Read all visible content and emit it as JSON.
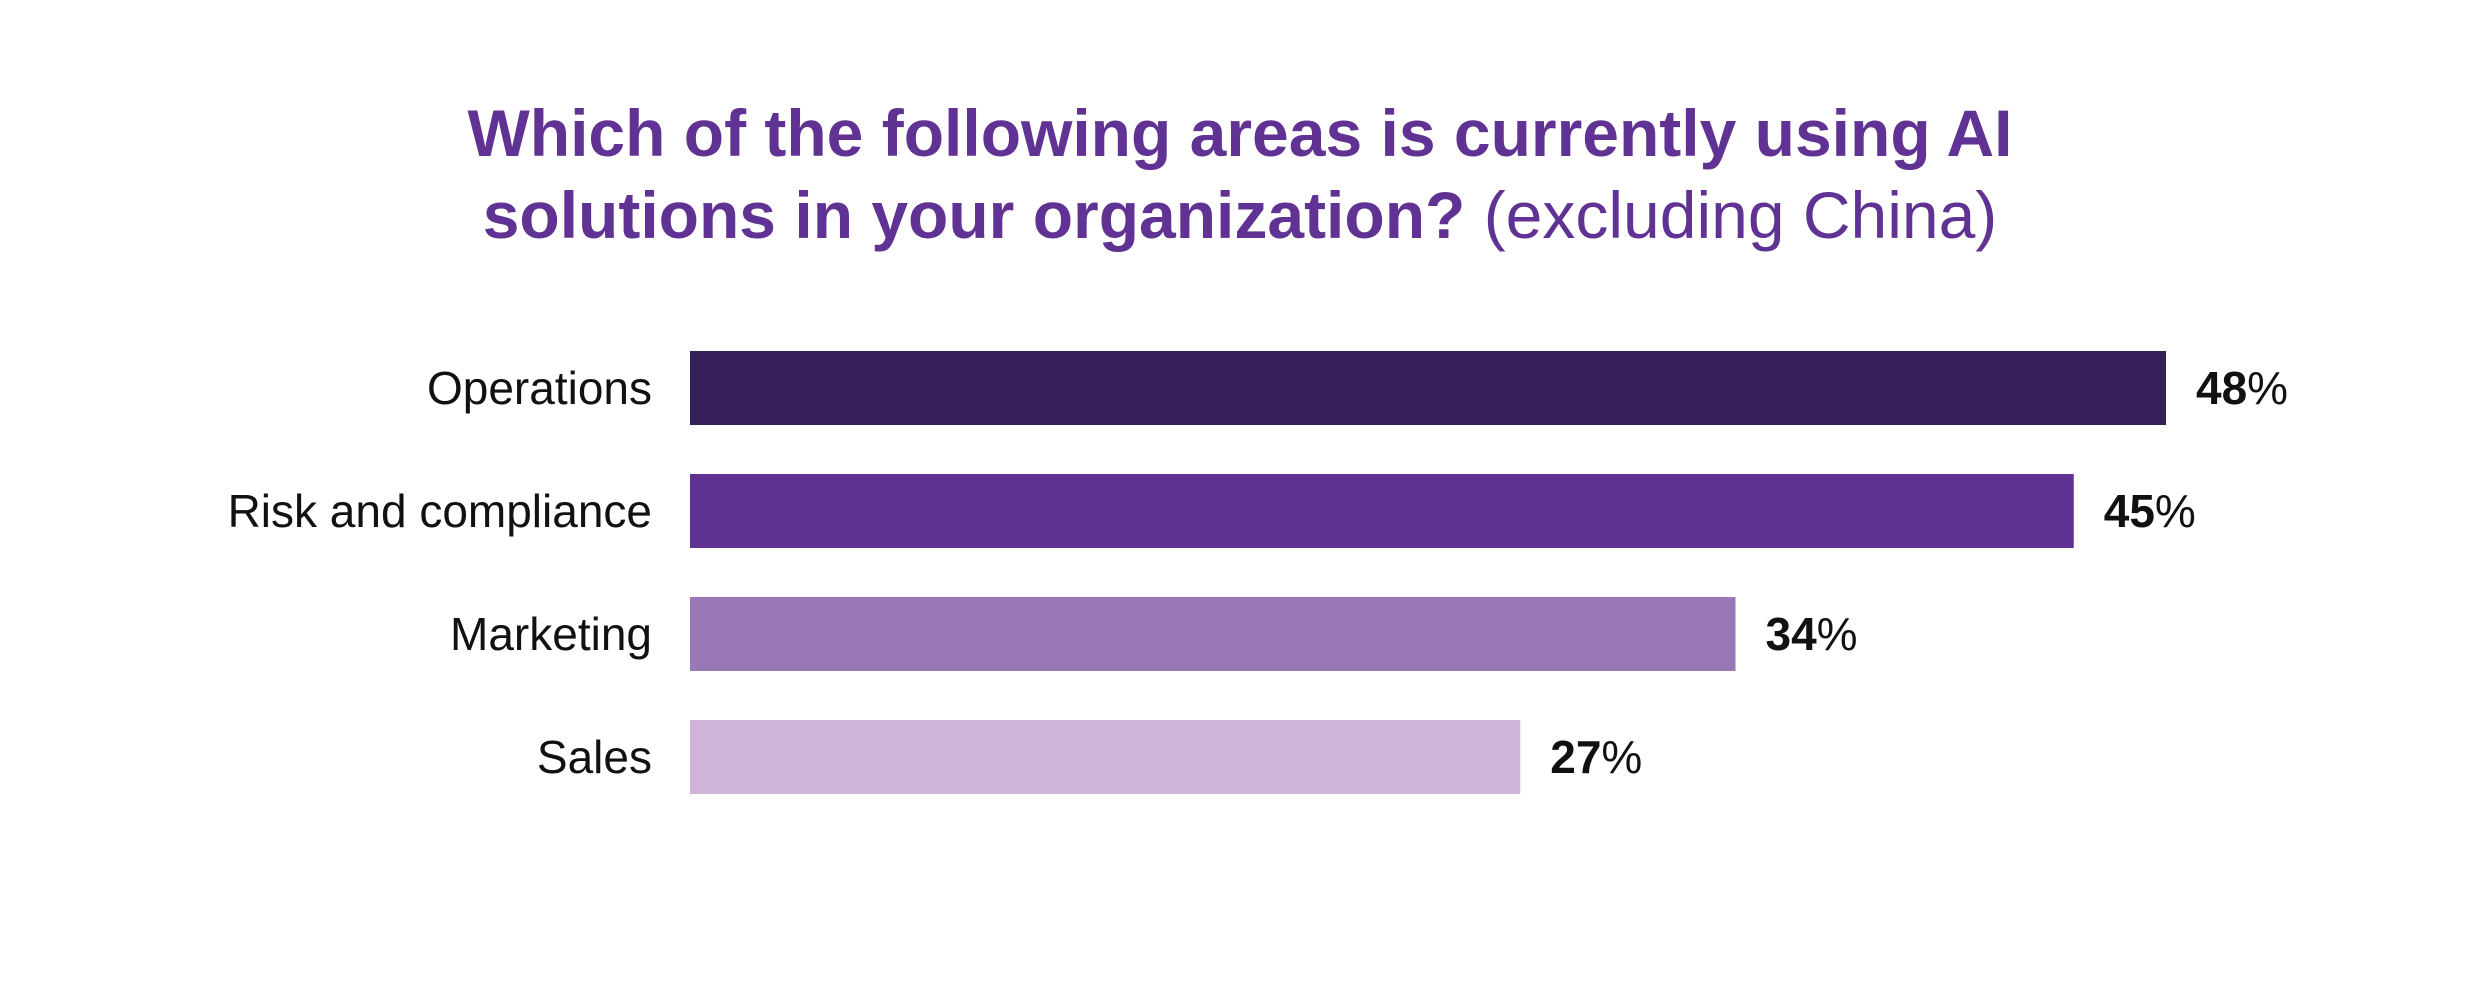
{
  "title": {
    "main_line1": "Which of the following areas is currently using AI",
    "main_line2": "solutions in your organization?",
    "qualifier": "(excluding China)"
  },
  "colors": {
    "title": "#5f3293",
    "bars": [
      "#341f5a",
      "#5f3293",
      "#9878b5",
      "#cdb4d8"
    ],
    "labels": "#111111"
  },
  "chart_data": {
    "type": "bar",
    "orientation": "horizontal",
    "title": "Which of the following areas is currently using AI solutions in your organization? (excluding China)",
    "categories": [
      "Operations",
      "Risk and compliance",
      "Marketing",
      "Sales"
    ],
    "values": [
      48,
      45,
      34,
      27
    ],
    "value_suffix": "%",
    "data_labels": [
      "48",
      "45",
      "34",
      "27"
    ],
    "xlabel": "",
    "ylabel": "",
    "grid": false,
    "legend": "none"
  }
}
